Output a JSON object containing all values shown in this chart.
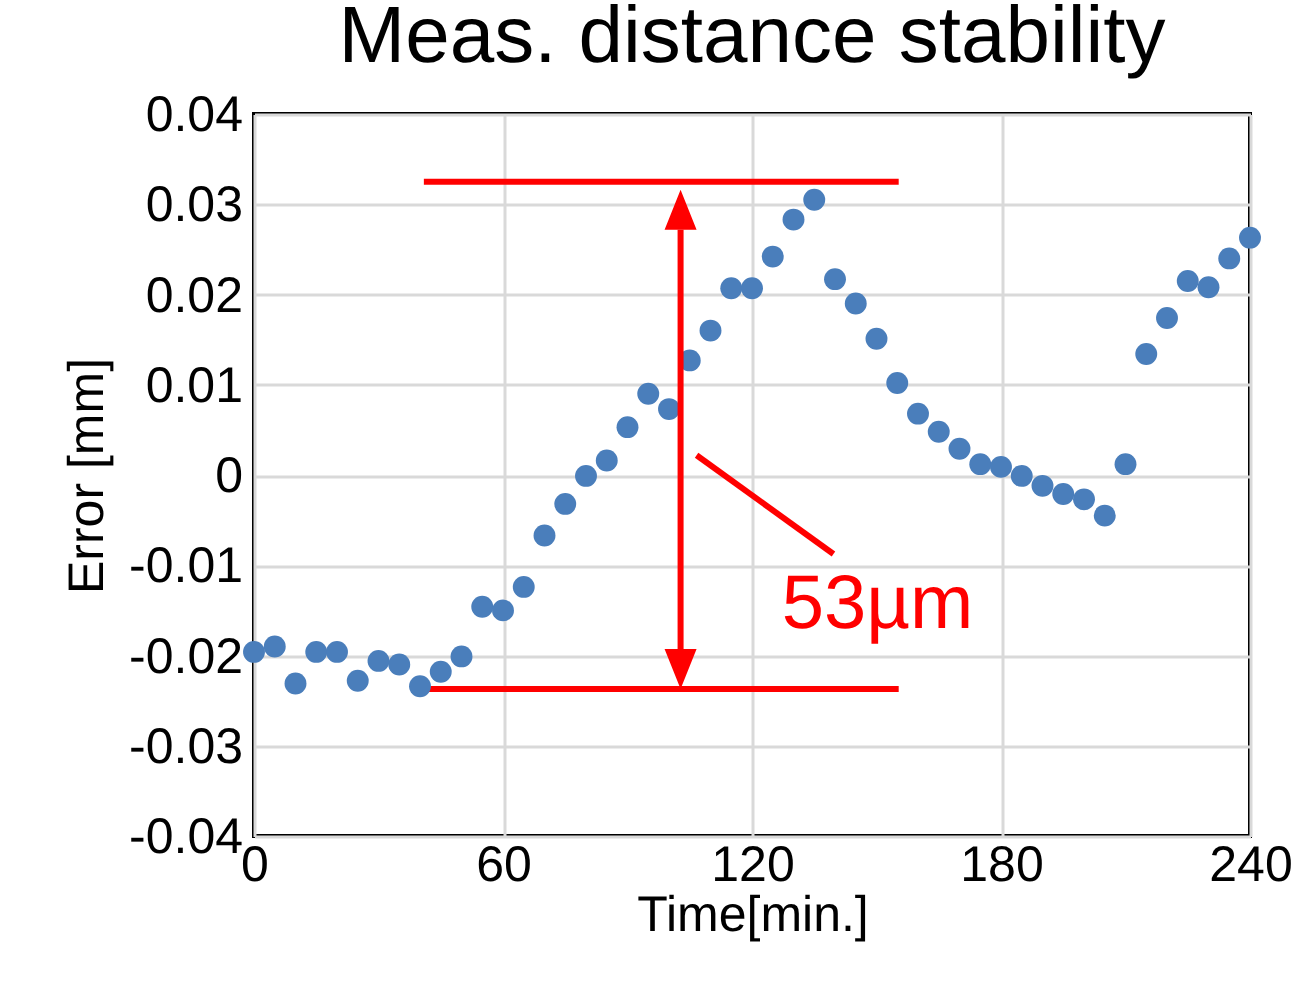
{
  "chart_data": {
    "type": "scatter",
    "title": "Meas. distance stability",
    "xlabel": "Time[min.]",
    "ylabel": "Error [mm]",
    "x": [
      0,
      5,
      10,
      15,
      20,
      25,
      30,
      35,
      40,
      45,
      50,
      55,
      60,
      65,
      70,
      75,
      80,
      85,
      90,
      95,
      100,
      105,
      110,
      115,
      120,
      125,
      130,
      135,
      140,
      145,
      150,
      155,
      160,
      165,
      170,
      175,
      180,
      185,
      190,
      195,
      200,
      205,
      210,
      215,
      220,
      225,
      230,
      235,
      240
    ],
    "series": [
      {
        "color": "#4a7ebb",
        "values": [
          -0.0196,
          -0.019,
          -0.0231,
          -0.0196,
          -0.0196,
          -0.0228,
          -0.0206,
          -0.021,
          -0.0234,
          -0.0218,
          -0.0201,
          -0.0146,
          -0.015,
          -0.0124,
          -0.0067,
          -0.0032,
          -0.0001,
          0.0016,
          0.0053,
          0.009,
          0.0073,
          0.0127,
          0.016,
          0.0207,
          0.0207,
          0.0242,
          0.0283,
          0.0305,
          0.0217,
          0.019,
          0.0151,
          0.0102,
          0.0068,
          0.0048,
          0.0029,
          0.0012,
          0.0009,
          -0.0001,
          -0.0012,
          -0.0021,
          -0.0027,
          -0.0045,
          0.0012,
          0.0134,
          0.0174,
          0.0215,
          0.0208,
          0.024,
          0.0263
        ]
      }
    ],
    "xlim": [
      0,
      240
    ],
    "xticks": [
      0,
      60,
      120,
      180,
      240
    ],
    "ylim": [
      -0.04,
      0.04
    ],
    "yticks": [
      {
        "value": -0.04,
        "label": "-0.04"
      },
      {
        "value": -0.03,
        "label": "-0.03"
      },
      {
        "value": -0.02,
        "label": "-0.02"
      },
      {
        "value": -0.01,
        "label": "-0.01"
      },
      {
        "value": 0,
        "label": "0"
      },
      {
        "value": 0.01,
        "label": "0.01"
      },
      {
        "value": 0.02,
        "label": "0.02"
      },
      {
        "value": 0.03,
        "label": "0.03"
      },
      {
        "value": 0.04,
        "label": "0.04"
      }
    ],
    "ref_lines": [
      {
        "axis": "y",
        "value": 0.0325,
        "color": "#ff0000"
      },
      {
        "axis": "y",
        "value": -0.0237,
        "color": "#ff0000"
      }
    ],
    "annotations": [
      "53µm"
    ],
    "grid": true,
    "marker": "circle",
    "legend": false
  }
}
